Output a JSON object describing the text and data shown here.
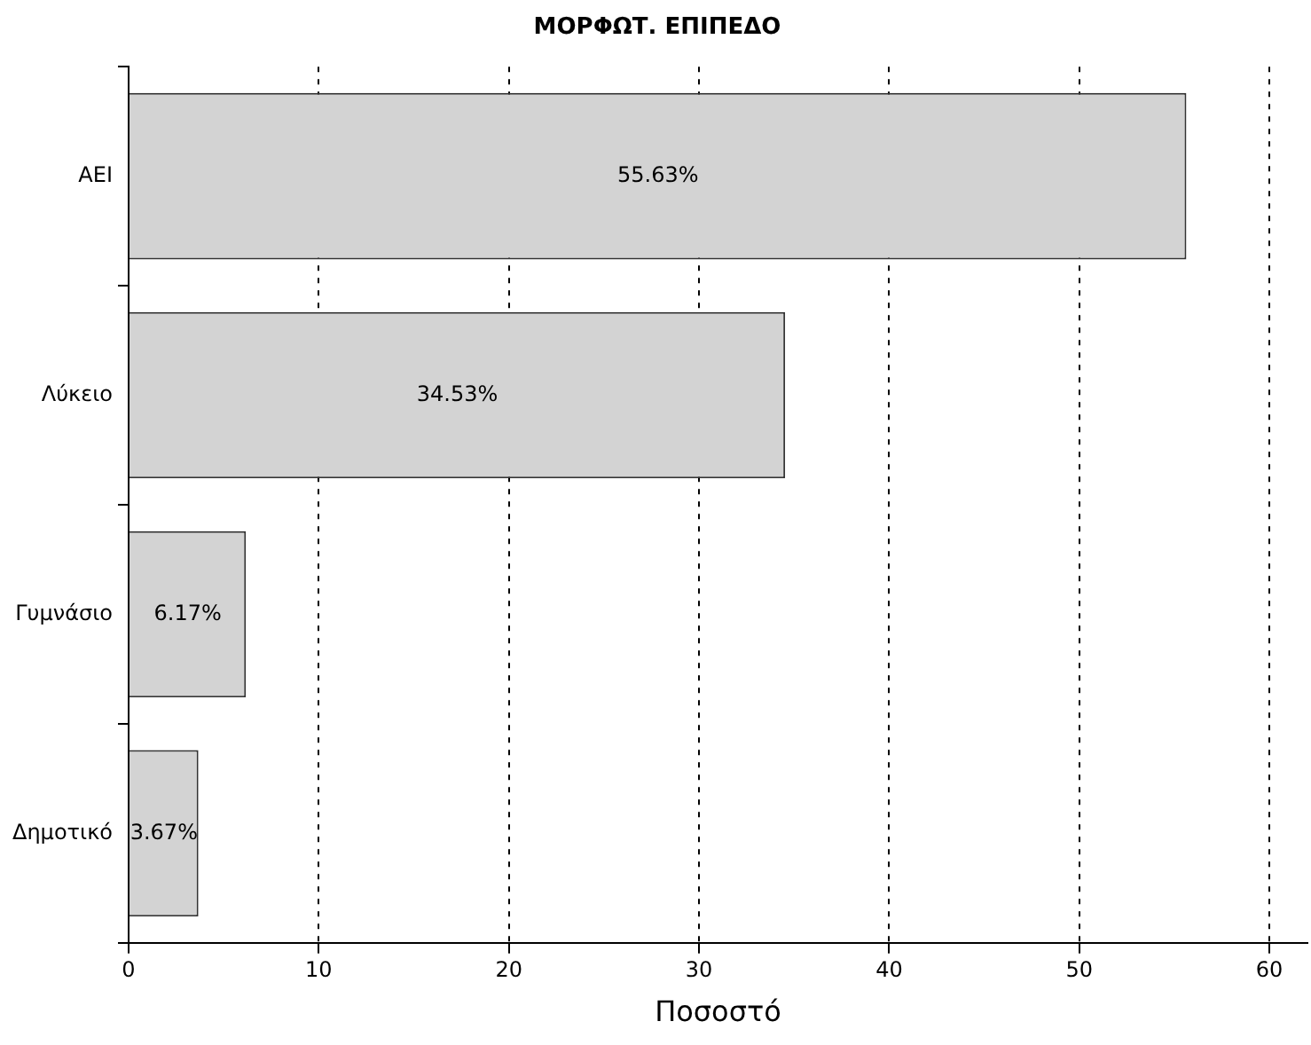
{
  "chart_data": {
    "type": "bar",
    "orientation": "horizontal",
    "title": "ΜΟΡΦΩΤ. ΕΠΙΠΕΔΟ",
    "xlabel": "Ποσοστό",
    "categories": [
      "ΑΕΙ",
      "Λύκειο",
      "Γυμνάσιο",
      "Δημοτικό"
    ],
    "values": [
      55.63,
      34.53,
      6.17,
      3.67
    ],
    "value_labels": [
      "55.63%",
      "34.53%",
      "6.17%",
      "3.67%"
    ],
    "color": "#d3d3d3",
    "xlim": [
      0,
      62
    ],
    "xticks": [
      0,
      10,
      20,
      30,
      40,
      50,
      60
    ],
    "grid": "x",
    "legend": false
  }
}
